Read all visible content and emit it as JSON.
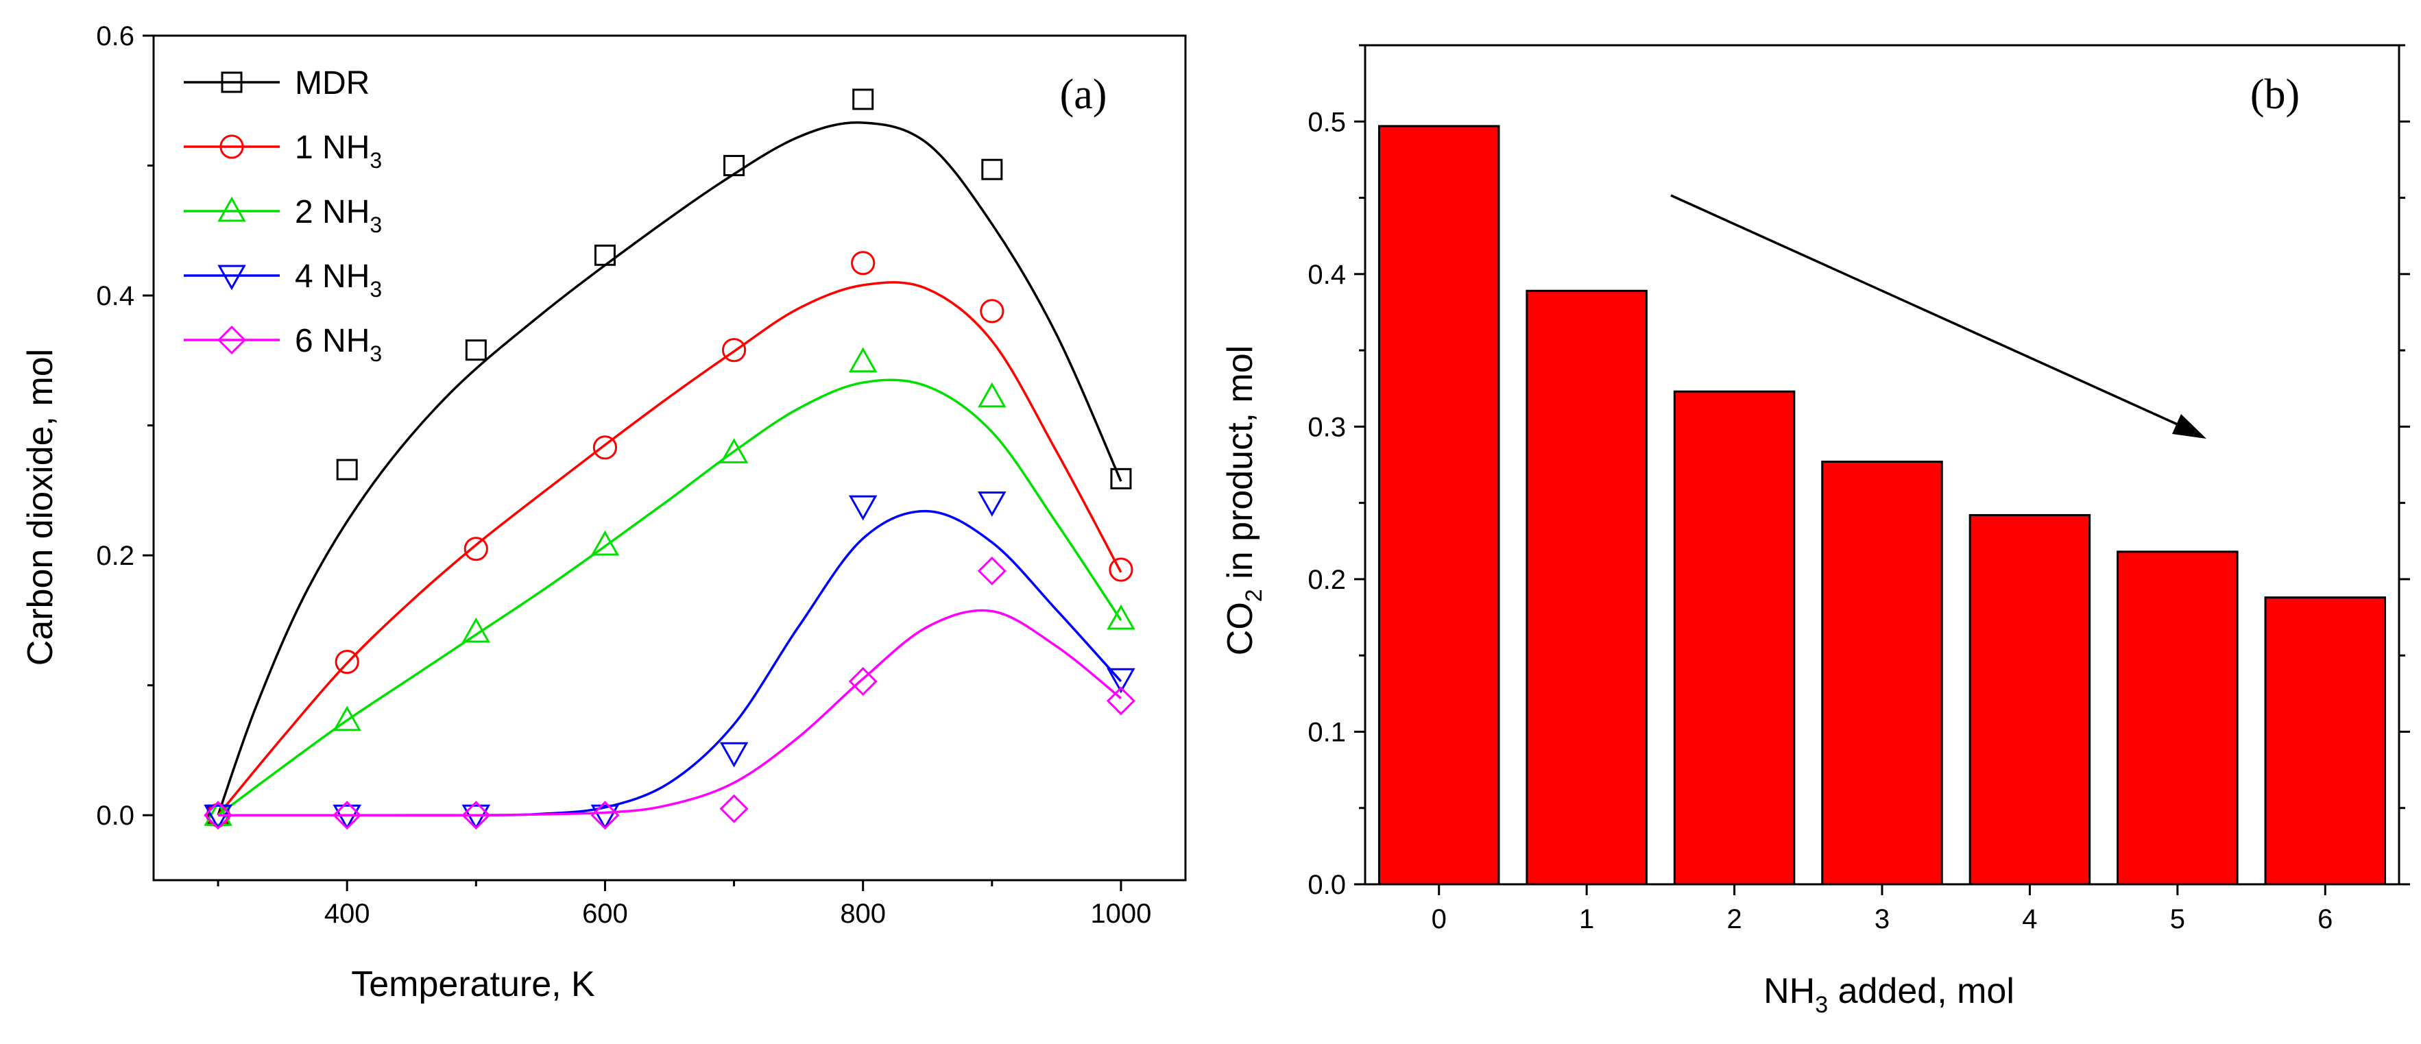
{
  "chart_data": [
    {
      "panel": "(a)",
      "type": "line",
      "xlabel": "Temperature, K",
      "ylabel": "Carbon dioxide, mol",
      "xlim": [
        250,
        1050
      ],
      "ylim": [
        -0.05,
        0.6
      ],
      "xticks": [
        400,
        600,
        800,
        1000
      ],
      "yticks": [
        0.0,
        0.2,
        0.4,
        0.6
      ],
      "xtick_labels": [
        "400",
        "600",
        "800",
        "1000"
      ],
      "ytick_labels": [
        "0.0",
        "0.2",
        "0.4",
        "0.6"
      ],
      "legend_position": "top-left",
      "series": [
        {
          "name": "MDR",
          "legend_main": "MDR",
          "legend_sub": "",
          "color": "#000000",
          "marker": "square",
          "x": [
            300,
            400,
            500,
            600,
            700,
            800,
            900,
            1000
          ],
          "values": [
            0.0,
            0.266,
            0.358,
            0.431,
            0.5,
            0.551,
            0.497,
            0.259
          ],
          "fit_x": [
            300,
            330,
            370,
            420,
            480,
            550,
            620,
            690,
            750,
            800,
            850,
            900,
            950,
            1000
          ],
          "fit_y": [
            0.0,
            0.085,
            0.175,
            0.255,
            0.325,
            0.385,
            0.438,
            0.487,
            0.522,
            0.533,
            0.517,
            0.455,
            0.37,
            0.257
          ]
        },
        {
          "name": "1 NH3",
          "legend_main": "1 NH",
          "legend_sub": "3",
          "color": "#ff0000",
          "marker": "circle",
          "x": [
            300,
            400,
            500,
            600,
            700,
            800,
            900,
            1000
          ],
          "values": [
            0.0,
            0.118,
            0.205,
            0.283,
            0.358,
            0.425,
            0.388,
            0.189
          ],
          "fit_x": [
            300,
            350,
            400,
            450,
            500,
            550,
            600,
            650,
            700,
            750,
            800,
            850,
            900,
            950,
            1000
          ],
          "fit_y": [
            0.0,
            0.06,
            0.117,
            0.165,
            0.208,
            0.247,
            0.285,
            0.322,
            0.357,
            0.39,
            0.408,
            0.405,
            0.365,
            0.28,
            0.187
          ]
        },
        {
          "name": "2 NH3",
          "legend_main": "2 NH",
          "legend_sub": "3",
          "color": "#00e000",
          "marker": "triangle-up",
          "x": [
            300,
            400,
            500,
            600,
            700,
            800,
            900,
            1000
          ],
          "values": [
            0.0,
            0.073,
            0.141,
            0.208,
            0.279,
            0.349,
            0.322,
            0.151
          ],
          "fit_x": [
            300,
            350,
            400,
            450,
            500,
            550,
            600,
            650,
            700,
            750,
            800,
            850,
            900,
            950,
            1000
          ],
          "fit_y": [
            0.0,
            0.037,
            0.073,
            0.106,
            0.139,
            0.172,
            0.207,
            0.243,
            0.28,
            0.313,
            0.333,
            0.33,
            0.295,
            0.225,
            0.15
          ]
        },
        {
          "name": "4 NH3",
          "legend_main": "4 NH",
          "legend_sub": "3",
          "color": "#0000ff",
          "marker": "triangle-down",
          "x": [
            300,
            400,
            500,
            600,
            700,
            800,
            900,
            1000
          ],
          "values": [
            0.0,
            0.0,
            0.0,
            0.0,
            0.048,
            0.238,
            0.241,
            0.105
          ],
          "fit_x": [
            300,
            400,
            500,
            550,
            600,
            650,
            700,
            750,
            800,
            850,
            900,
            950,
            1000
          ],
          "fit_y": [
            0.0,
            0.0,
            0.0,
            0.001,
            0.006,
            0.025,
            0.07,
            0.145,
            0.213,
            0.234,
            0.21,
            0.158,
            0.103
          ]
        },
        {
          "name": "6 NH3",
          "legend_main": "6 NH",
          "legend_sub": "3",
          "color": "#ff00ff",
          "marker": "diamond",
          "x": [
            300,
            400,
            500,
            600,
            700,
            800,
            900,
            1000
          ],
          "values": [
            0.0,
            0.0,
            0.0,
            0.0,
            0.005,
            0.103,
            0.188,
            0.088
          ],
          "fit_x": [
            300,
            400,
            500,
            600,
            650,
            700,
            750,
            800,
            850,
            900,
            950,
            1000
          ],
          "fit_y": [
            0.0,
            0.0,
            0.0,
            0.002,
            0.008,
            0.025,
            0.06,
            0.105,
            0.145,
            0.157,
            0.13,
            0.09
          ]
        }
      ]
    },
    {
      "panel": "(b)",
      "type": "bar",
      "xlabel": "NH3 added, mol",
      "xlabel_parts": [
        "NH",
        "3",
        " added, mol"
      ],
      "ylabel": "CO2 in product, mol",
      "ylabel_parts": [
        "CO",
        "2",
        " in product, mol"
      ],
      "categories": [
        "0",
        "1",
        "2",
        "3",
        "4",
        "5",
        "6"
      ],
      "values": [
        0.497,
        0.389,
        0.323,
        0.277,
        0.242,
        0.218,
        0.188
      ],
      "ylim": [
        0,
        0.55
      ],
      "yticks": [
        0.0,
        0.1,
        0.2,
        0.3,
        0.4,
        0.5
      ],
      "ytick_labels": [
        "0.0",
        "0.1",
        "0.2",
        "0.3",
        "0.4",
        "0.5"
      ],
      "bar_color": "#ff0000",
      "annotation": "arrow indicating decreasing trend"
    }
  ]
}
